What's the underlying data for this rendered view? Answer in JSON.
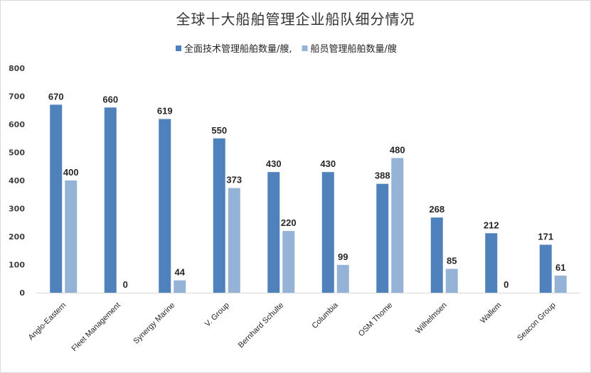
{
  "chart_data": {
    "type": "bar",
    "title": "全球十大船舶管理企业船队细分情况",
    "categories": [
      "Anglo-Eastern",
      "Fleet Management",
      "Synergy Marine",
      "V. Group",
      "Bernhard Schulte",
      "Columbia",
      "OSM Thome",
      "Wilhelmsen",
      "Wallem",
      "Seacon Group"
    ],
    "series": [
      {
        "name": "全面技术管理船舶数量/艘,",
        "color": "#4f81bd",
        "values": [
          670,
          660,
          619,
          550,
          430,
          430,
          388,
          268,
          212,
          171
        ]
      },
      {
        "name": "船员管理船舶数量/艘",
        "color": "#95b3d7",
        "values": [
          400,
          0,
          44,
          373,
          220,
          99,
          480,
          85,
          0,
          61
        ]
      }
    ],
    "ylim": [
      0,
      800
    ],
    "yticks": [
      0,
      100,
      200,
      300,
      400,
      500,
      600,
      700,
      800
    ],
    "grid": false,
    "legend_position": "top",
    "xlabel": "",
    "ylabel": ""
  }
}
